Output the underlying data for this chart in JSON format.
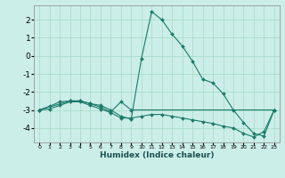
{
  "xlabel": "Humidex (Indice chaleur)",
  "ylabel": "",
  "bg_color": "#cceee8",
  "grid_color": "#aaddcc",
  "line_color": "#1a7a6a",
  "xlim": [
    -0.5,
    23.5
  ],
  "ylim": [
    -4.8,
    2.8
  ],
  "xticks": [
    0,
    1,
    2,
    3,
    4,
    5,
    6,
    7,
    8,
    9,
    10,
    11,
    12,
    13,
    14,
    15,
    16,
    17,
    18,
    19,
    20,
    21,
    22,
    23
  ],
  "yticks": [
    -4,
    -3,
    -2,
    -1,
    0,
    1,
    2
  ],
  "series": [
    {
      "x": [
        0,
        1,
        2,
        3,
        4,
        5,
        6,
        7,
        8,
        9,
        10,
        11,
        12,
        13,
        14,
        15,
        16,
        17,
        18,
        19,
        20,
        21,
        22,
        23
      ],
      "y": [
        -3.0,
        -2.8,
        -2.55,
        -2.5,
        -2.5,
        -2.65,
        -2.75,
        -3.0,
        -3.35,
        -3.5,
        -0.15,
        2.45,
        2.0,
        1.2,
        0.55,
        -0.3,
        -1.3,
        -1.5,
        -2.1,
        -3.0,
        -3.7,
        -4.3,
        -4.45,
        -3.0
      ]
    },
    {
      "x": [
        0,
        1,
        2,
        3,
        4,
        5,
        6,
        7,
        8,
        9,
        10,
        11,
        12,
        13,
        14,
        15,
        16,
        17,
        18,
        19,
        20,
        21,
        22,
        23
      ],
      "y": [
        -3.0,
        -2.95,
        -2.75,
        -2.55,
        -2.55,
        -2.75,
        -2.95,
        -3.15,
        -3.45,
        -3.45,
        -3.35,
        -3.25,
        -3.25,
        -3.35,
        -3.45,
        -3.55,
        -3.65,
        -3.75,
        -3.9,
        -4.0,
        -4.3,
        -4.5,
        -4.2,
        -3.0
      ]
    },
    {
      "x": [
        0,
        3,
        4,
        5,
        6,
        7,
        8,
        9,
        23
      ],
      "y": [
        -3.0,
        -2.5,
        -2.5,
        -2.65,
        -2.85,
        -3.1,
        -2.55,
        -3.0,
        -3.0
      ]
    }
  ]
}
